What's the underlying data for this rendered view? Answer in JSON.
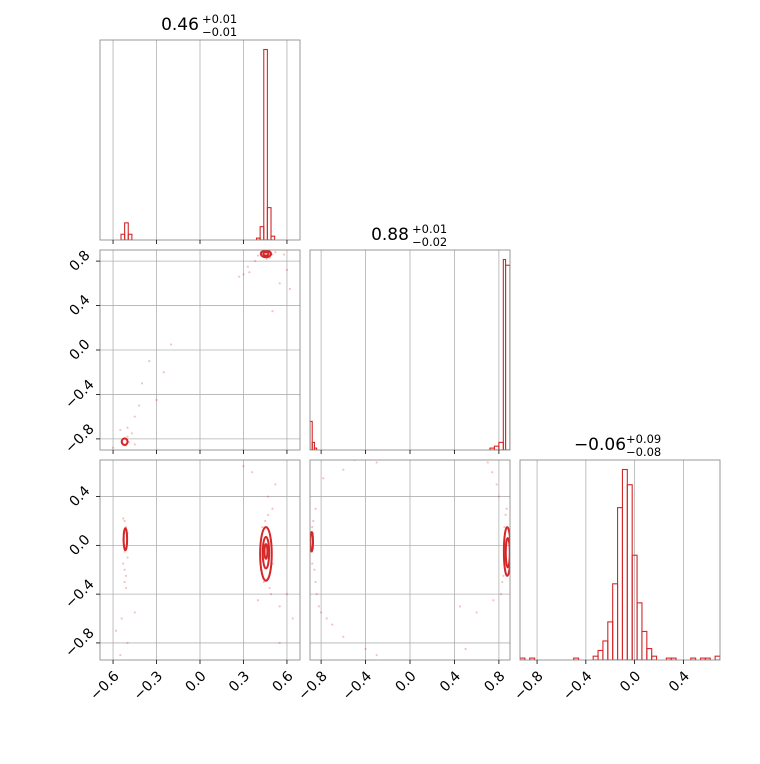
{
  "colors": {
    "series": "#d62728",
    "grid": "#b0b0b0",
    "frame": "#808080",
    "tick": "#000000"
  },
  "chart_data": {
    "type": "corner",
    "grid": true,
    "parameters": [
      "p1",
      "p2",
      "p3"
    ],
    "panels": [
      {
        "id": "hist-p1",
        "type": "histogram",
        "row": 0,
        "col": 0,
        "title": {
          "median": "0.46",
          "upper": "+0.01",
          "lower": "−0.01"
        },
        "xlim": [
          -0.69,
          0.69
        ],
        "ylim": [
          0,
          1.05
        ],
        "xticks": [
          -0.6,
          -0.3,
          0.0,
          0.3,
          0.6
        ],
        "bins": [
          {
            "x0": -0.545,
            "x1": -0.52,
            "h": 0.03
          },
          {
            "x0": -0.52,
            "x1": -0.495,
            "h": 0.09
          },
          {
            "x0": -0.495,
            "x1": -0.47,
            "h": 0.03
          },
          {
            "x0": 0.39,
            "x1": 0.415,
            "h": 0.01
          },
          {
            "x0": 0.415,
            "x1": 0.44,
            "h": 0.07
          },
          {
            "x0": 0.44,
            "x1": 0.465,
            "h": 1.0
          },
          {
            "x0": 0.465,
            "x1": 0.49,
            "h": 0.17
          },
          {
            "x0": 0.49,
            "x1": 0.515,
            "h": 0.02
          }
        ]
      },
      {
        "id": "hist-p2",
        "type": "histogram",
        "row": 1,
        "col": 1,
        "title": {
          "median": "0.88",
          "upper": "+0.01",
          "lower": "−0.02"
        },
        "xlim": [
          -0.9,
          0.9
        ],
        "ylim": [
          0,
          1.05
        ],
        "xticks": [
          -0.8,
          -0.4,
          0.0,
          0.4,
          0.8
        ],
        "bins": [
          {
            "x0": -0.9,
            "x1": -0.88,
            "h": 0.15
          },
          {
            "x0": -0.88,
            "x1": -0.86,
            "h": 0.04
          },
          {
            "x0": -0.86,
            "x1": -0.84,
            "h": 0.01
          },
          {
            "x0": 0.72,
            "x1": 0.76,
            "h": 0.01
          },
          {
            "x0": 0.76,
            "x1": 0.8,
            "h": 0.02
          },
          {
            "x0": 0.8,
            "x1": 0.84,
            "h": 0.04
          },
          {
            "x0": 0.84,
            "x1": 0.86,
            "h": 1.0
          },
          {
            "x0": 0.86,
            "x1": 0.9,
            "h": 0.97
          }
        ]
      },
      {
        "id": "hist-p3",
        "type": "histogram",
        "row": 2,
        "col": 2,
        "title": {
          "median": "−0.06",
          "upper": "+0.09",
          "lower": "−0.08"
        },
        "xlim": [
          -0.94,
          0.7
        ],
        "ylim": [
          0,
          1.05
        ],
        "xticks": [
          -0.8,
          -0.4,
          0.0,
          0.4
        ],
        "bins": [
          {
            "x0": -0.94,
            "x1": -0.9,
            "h": 0.01
          },
          {
            "x0": -0.86,
            "x1": -0.82,
            "h": 0.01
          },
          {
            "x0": -0.5,
            "x1": -0.46,
            "h": 0.01
          },
          {
            "x0": -0.34,
            "x1": -0.3,
            "h": 0.02
          },
          {
            "x0": -0.3,
            "x1": -0.26,
            "h": 0.05
          },
          {
            "x0": -0.26,
            "x1": -0.22,
            "h": 0.1
          },
          {
            "x0": -0.22,
            "x1": -0.18,
            "h": 0.2
          },
          {
            "x0": -0.18,
            "x1": -0.14,
            "h": 0.4
          },
          {
            "x0": -0.14,
            "x1": -0.1,
            "h": 0.8
          },
          {
            "x0": -0.1,
            "x1": -0.06,
            "h": 1.0
          },
          {
            "x0": -0.06,
            "x1": -0.02,
            "h": 0.92
          },
          {
            "x0": -0.02,
            "x1": 0.02,
            "h": 0.55
          },
          {
            "x0": 0.02,
            "x1": 0.06,
            "h": 0.3
          },
          {
            "x0": 0.06,
            "x1": 0.1,
            "h": 0.15
          },
          {
            "x0": 0.1,
            "x1": 0.14,
            "h": 0.06
          },
          {
            "x0": 0.14,
            "x1": 0.18,
            "h": 0.02
          },
          {
            "x0": 0.26,
            "x1": 0.3,
            "h": 0.01
          },
          {
            "x0": 0.3,
            "x1": 0.34,
            "h": 0.01
          },
          {
            "x0": 0.46,
            "x1": 0.5,
            "h": 0.01
          },
          {
            "x0": 0.54,
            "x1": 0.58,
            "h": 0.01
          },
          {
            "x0": 0.58,
            "x1": 0.62,
            "h": 0.01
          },
          {
            "x0": 0.66,
            "x1": 0.7,
            "h": 0.02
          }
        ]
      },
      {
        "id": "scatter-p1-p2",
        "type": "2d",
        "row": 1,
        "col": 0,
        "xlim": [
          -0.69,
          0.69
        ],
        "ylim": [
          -0.9,
          0.9
        ],
        "xticks": [
          -0.6,
          -0.3,
          0.0,
          0.3,
          0.6
        ],
        "yticks": [
          -0.8,
          -0.4,
          0.0,
          0.4,
          0.8
        ],
        "contours": [
          {
            "cx": 0.455,
            "cy": 0.865,
            "rx": 0.035,
            "ry": 0.03
          },
          {
            "cx": 0.455,
            "cy": 0.865,
            "rx": 0.018,
            "ry": 0.015
          },
          {
            "cx": -0.52,
            "cy": -0.825,
            "rx": 0.02,
            "ry": 0.03
          }
        ],
        "points": [
          [
            0.42,
            0.88
          ],
          [
            0.5,
            0.86
          ],
          [
            0.48,
            0.83
          ],
          [
            0.44,
            0.84
          ],
          [
            0.46,
            0.82
          ],
          [
            0.52,
            0.88
          ],
          [
            0.4,
            0.85
          ],
          [
            0.33,
            0.75
          ],
          [
            0.3,
            0.68
          ],
          [
            0.55,
            0.6
          ],
          [
            0.62,
            0.55
          ],
          [
            0.5,
            0.35
          ],
          [
            0.6,
            0.72
          ],
          [
            0.38,
            0.8
          ],
          [
            0.34,
            0.7
          ],
          [
            0.58,
            0.86
          ],
          [
            0.27,
            0.66
          ],
          [
            0.45,
            0.89
          ],
          [
            -0.52,
            -0.8
          ],
          [
            -0.53,
            -0.84
          ],
          [
            -0.51,
            -0.86
          ],
          [
            -0.5,
            -0.78
          ],
          [
            -0.54,
            -0.82
          ],
          [
            -0.49,
            -0.83
          ],
          [
            -0.55,
            -0.72
          ],
          [
            -0.6,
            -0.88
          ],
          [
            -0.45,
            -0.6
          ],
          [
            -0.4,
            -0.3
          ],
          [
            -0.3,
            -0.45
          ],
          [
            -0.35,
            -0.1
          ],
          [
            -0.2,
            0.05
          ],
          [
            -0.45,
            -0.85
          ],
          [
            -0.5,
            -0.7
          ],
          [
            -0.42,
            -0.5
          ],
          [
            -0.25,
            -0.2
          ],
          [
            -0.47,
            -0.75
          ]
        ]
      },
      {
        "id": "scatter-p1-p3",
        "type": "2d",
        "row": 2,
        "col": 0,
        "xlim": [
          -0.69,
          0.69
        ],
        "ylim": [
          -0.94,
          0.7
        ],
        "xticks": [
          -0.6,
          -0.3,
          0.0,
          0.3,
          0.6
        ],
        "yticks": [
          -0.8,
          -0.4,
          0.0,
          0.4
        ],
        "contours": [
          {
            "cx": 0.455,
            "cy": -0.07,
            "rx": 0.04,
            "ry": 0.22
          },
          {
            "cx": 0.455,
            "cy": -0.06,
            "rx": 0.022,
            "ry": 0.13
          },
          {
            "cx": 0.455,
            "cy": -0.05,
            "rx": 0.01,
            "ry": 0.06
          },
          {
            "cx": -0.515,
            "cy": 0.05,
            "rx": 0.012,
            "ry": 0.09
          }
        ],
        "points": [
          [
            -0.52,
            0.2
          ],
          [
            -0.51,
            0.15
          ],
          [
            -0.52,
            -0.05
          ],
          [
            -0.5,
            -0.1
          ],
          [
            -0.53,
            -0.15
          ],
          [
            -0.52,
            -0.2
          ],
          [
            -0.51,
            -0.25
          ],
          [
            -0.52,
            -0.3
          ],
          [
            -0.53,
            0.22
          ],
          [
            -0.51,
            -0.35
          ],
          [
            -0.5,
            0.1
          ],
          [
            -0.53,
            0.05
          ],
          [
            -0.54,
            -0.6
          ],
          [
            -0.58,
            -0.7
          ],
          [
            -0.5,
            -0.8
          ],
          [
            -0.55,
            -0.9
          ],
          [
            -0.45,
            -0.55
          ],
          [
            0.45,
            0.2
          ],
          [
            0.47,
            0.25
          ],
          [
            0.44,
            -0.3
          ],
          [
            0.48,
            -0.35
          ],
          [
            0.46,
            -0.28
          ],
          [
            0.43,
            0.15
          ],
          [
            0.49,
            -0.4
          ],
          [
            0.5,
            0.3
          ],
          [
            0.4,
            -0.45
          ],
          [
            0.55,
            -0.5
          ],
          [
            0.6,
            -0.4
          ],
          [
            0.64,
            -0.6
          ],
          [
            0.55,
            -0.8
          ],
          [
            0.36,
            0.6
          ],
          [
            0.3,
            0.65
          ],
          [
            0.52,
            0.5
          ],
          [
            0.47,
            0.4
          ],
          [
            0.42,
            -0.2
          ],
          [
            0.5,
            -0.15
          ]
        ]
      },
      {
        "id": "scatter-p2-p3",
        "type": "2d",
        "row": 2,
        "col": 1,
        "xlim": [
          -0.9,
          0.9
        ],
        "ylim": [
          -0.94,
          0.7
        ],
        "xticks": [
          -0.8,
          -0.4,
          0.0,
          0.4,
          0.8
        ],
        "yticks": [
          -0.8,
          -0.4,
          0.0,
          0.4
        ],
        "contours": [
          {
            "cx": 0.875,
            "cy": -0.05,
            "rx": 0.03,
            "ry": 0.2
          },
          {
            "cx": 0.88,
            "cy": -0.06,
            "rx": 0.018,
            "ry": 0.12
          },
          {
            "cx": -0.885,
            "cy": 0.03,
            "rx": 0.012,
            "ry": 0.08
          }
        ],
        "points": [
          [
            -0.88,
            0.15
          ],
          [
            -0.87,
            0.1
          ],
          [
            -0.89,
            -0.05
          ],
          [
            -0.88,
            -0.15
          ],
          [
            -0.86,
            -0.2
          ],
          [
            -0.87,
            0.2
          ],
          [
            -0.85,
            -0.3
          ],
          [
            -0.84,
            -0.4
          ],
          [
            -0.82,
            -0.5
          ],
          [
            -0.8,
            -0.55
          ],
          [
            -0.75,
            -0.6
          ],
          [
            -0.7,
            -0.65
          ],
          [
            -0.6,
            -0.75
          ],
          [
            -0.4,
            -0.85
          ],
          [
            -0.3,
            -0.9
          ],
          [
            -0.85,
            0.3
          ],
          [
            -0.78,
            0.55
          ],
          [
            -0.6,
            0.62
          ],
          [
            -0.3,
            0.68
          ],
          [
            -0.5,
            0.7
          ],
          [
            0.85,
            0.15
          ],
          [
            0.86,
            0.25
          ],
          [
            0.84,
            -0.25
          ],
          [
            0.83,
            -0.3
          ],
          [
            0.8,
            0.4
          ],
          [
            0.78,
            0.5
          ],
          [
            0.74,
            0.6
          ],
          [
            0.7,
            0.68
          ],
          [
            0.75,
            -0.45
          ],
          [
            0.6,
            -0.55
          ],
          [
            0.5,
            -0.85
          ],
          [
            0.82,
            -0.4
          ],
          [
            0.87,
            0.3
          ],
          [
            0.45,
            -0.5
          ]
        ]
      }
    ]
  }
}
